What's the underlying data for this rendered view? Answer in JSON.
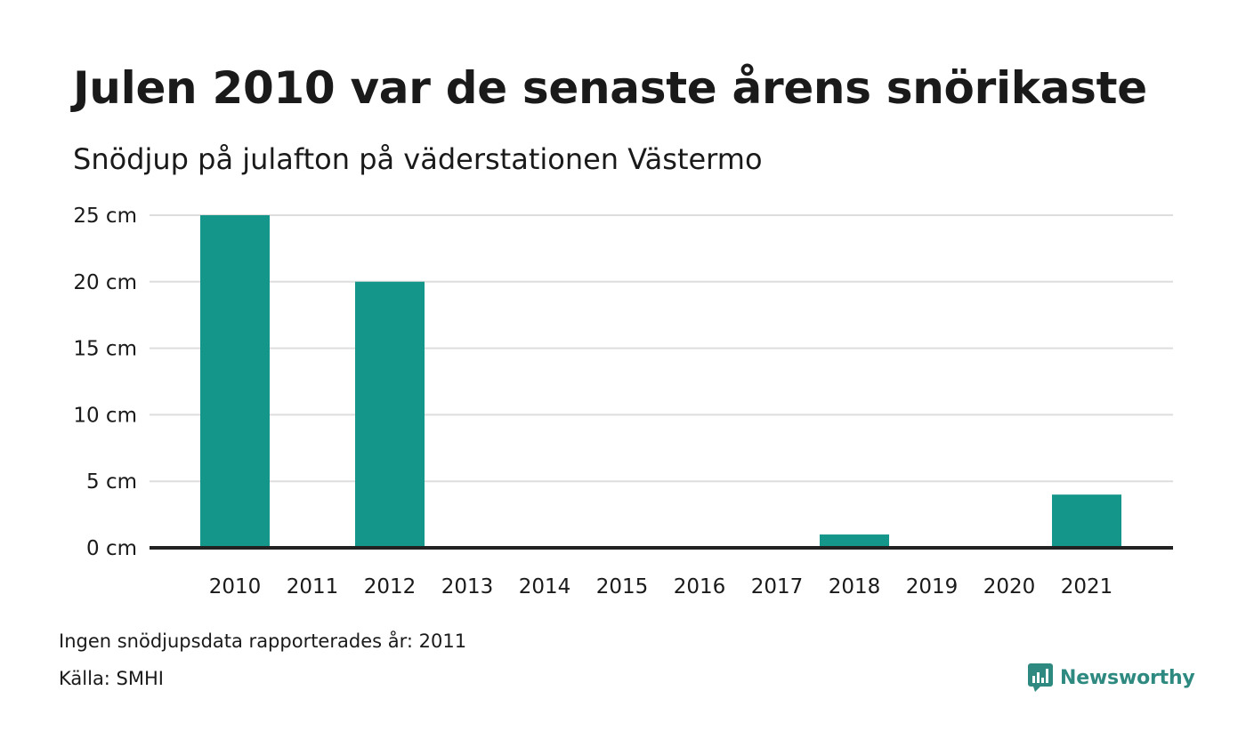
{
  "chart_data": {
    "type": "bar",
    "title": "Julen 2010 var de senaste årens snörikaste",
    "subtitle": "Snödjup på julafton på väderstationen Västermo",
    "categories": [
      "2010",
      "2011",
      "2012",
      "2013",
      "2014",
      "2015",
      "2016",
      "2017",
      "2018",
      "2019",
      "2020",
      "2021"
    ],
    "values": [
      25,
      null,
      20,
      0,
      0,
      0,
      0,
      0,
      1,
      0,
      0,
      4
    ],
    "y_ticks": [
      0,
      5,
      10,
      15,
      20,
      25
    ],
    "y_tick_suffix": " cm",
    "ylim": [
      0,
      25
    ],
    "grid": true,
    "bar_color": "#14978a"
  },
  "footer": {
    "note": "Ingen snödjupsdata rapporterades år: 2011",
    "source": "Källa: SMHI",
    "brand": "Newsworthy",
    "brand_color": "#2e8a80"
  }
}
